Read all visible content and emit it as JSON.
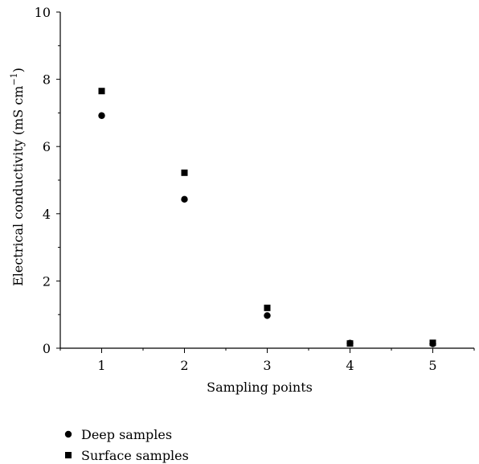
{
  "chart_data": {
    "type": "scatter",
    "title": "",
    "xlabel": "Sampling points",
    "ylabel": "Electrical conductivity (mS cm",
    "ylabel_sup": "−1",
    "ylabel_tail": ")",
    "xlim": [
      0.5,
      5.5
    ],
    "ylim": [
      0,
      10
    ],
    "xticks": [
      1,
      2,
      3,
      4,
      5
    ],
    "yticks": [
      0,
      2,
      4,
      6,
      8,
      10
    ],
    "grid": false,
    "legend_position": "bottom-left, below axes",
    "x": [
      1,
      2,
      3,
      4,
      5
    ],
    "series": [
      {
        "name": "Deep samples",
        "marker": "circle",
        "color": "#000000",
        "values": [
          6.92,
          4.43,
          0.97,
          0.15,
          0.13
        ]
      },
      {
        "name": "Surface samples",
        "marker": "square",
        "color": "#000000",
        "values": [
          7.65,
          5.22,
          1.2,
          0.14,
          0.16
        ]
      }
    ]
  }
}
